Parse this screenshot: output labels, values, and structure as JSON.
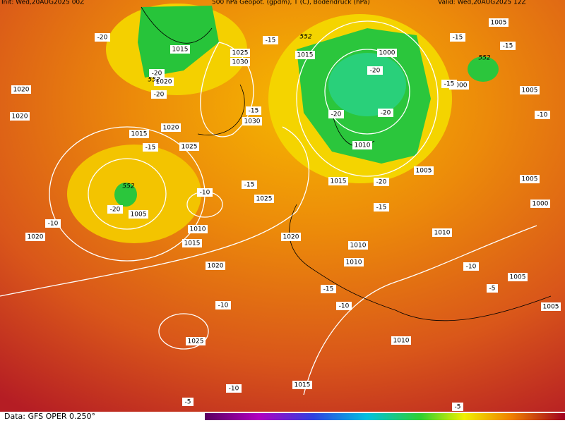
{
  "header": {
    "init": "Init: Wed,20AUG2025 00Z",
    "field": "500 hPa Geopot. (gpdm), T (C), Bodendruck (hPa)",
    "valid": "Valid: Wed,20AUG2025 12Z"
  },
  "footer": {
    "source": "Data: GFS OPER 0.250°"
  },
  "isobar_labels": [
    "1015",
    "1020",
    "1025",
    "1030",
    "1020",
    "1020",
    "1015",
    "1020",
    "1025",
    "1030",
    "1015",
    "1000",
    "1005",
    "1000",
    "1005",
    "1010",
    "1005",
    "1005",
    "1000",
    "1015",
    "1025",
    "1005",
    "1010",
    "1015",
    "1020",
    "1020",
    "1010",
    "1010",
    "1010",
    "1005",
    "1005",
    "1020",
    "1025",
    "1010",
    "1015"
  ],
  "temperature_labels": [
    "-20",
    "-20",
    "-20",
    "-15",
    "-15",
    "-20",
    "-20",
    "-20",
    "-15",
    "-15",
    "-15",
    "-10",
    "-15",
    "-10",
    "-15",
    "-20",
    "-10",
    "-15",
    "-20",
    "-15",
    "-10",
    "-10",
    "-10",
    "-5",
    "-10",
    "-5",
    "-5"
  ],
  "geopotential_labels": [
    "552",
    "552",
    "552",
    "552"
  ]
}
